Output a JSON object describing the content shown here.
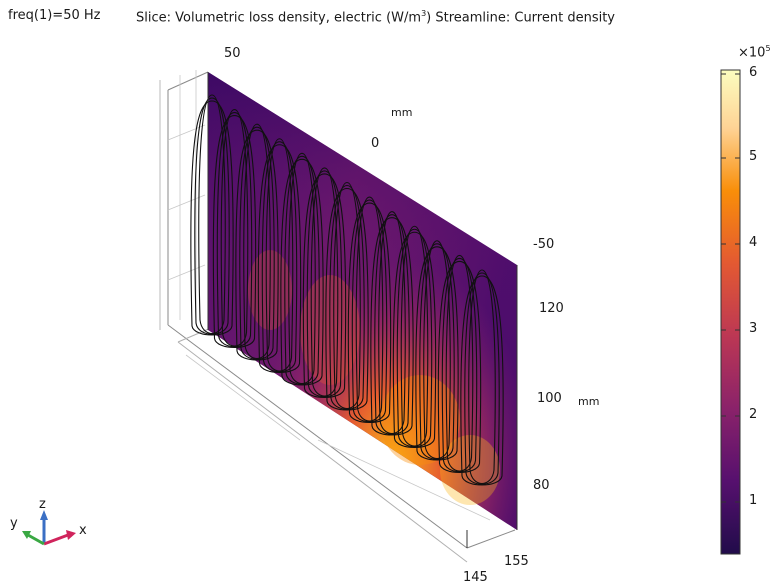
{
  "header": {
    "freq": "freq(1)=50 Hz",
    "title_prefix": "Slice: Volumetric loss density, electric (W/m",
    "title_exp": "3",
    "title_suffix": ")  Streamline: Current density"
  },
  "axes": {
    "top_ticks": [
      "50",
      "0",
      "-50"
    ],
    "top_unit": "mm",
    "right_ticks": [
      "120",
      "100",
      "80"
    ],
    "right_unit": "mm",
    "bottom_ticks": [
      "155",
      "145"
    ]
  },
  "colorbar": {
    "scale_label": "×10",
    "scale_exp": "5",
    "ticks": [
      "6",
      "5",
      "4",
      "3",
      "2",
      "1"
    ],
    "colors": [
      "#fcfdbf",
      "#fec57a",
      "#f98c09",
      "#e35932",
      "#bc3754",
      "#8a226a",
      "#56106e",
      "#210c4a",
      "#000004"
    ]
  },
  "triad": {
    "x": "x",
    "y": "y",
    "z": "z"
  }
}
